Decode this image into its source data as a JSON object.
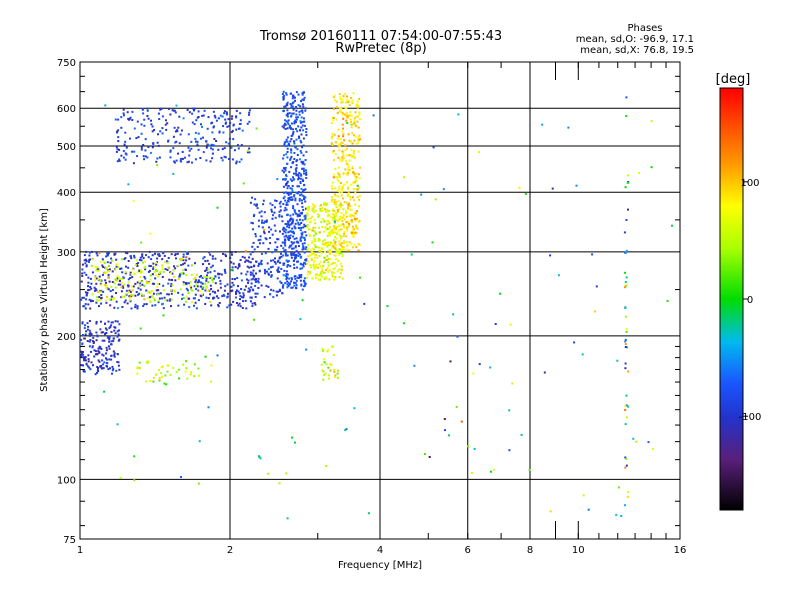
{
  "chart_data": {
    "type": "scatter",
    "title": "Tromsø 20160111 07:54:00-07:55:43",
    "subtitle": "RwPretec (8p)",
    "stats": {
      "heading": "Phases",
      "line1": "mean, sd,O: -96.9, 17.1",
      "line2": "mean, sd,X:  76.8, 19.5"
    },
    "xlabel": "Frequency [MHz]",
    "ylabel": "Stationary phase Virtual Height [km]",
    "x_scale": "log",
    "y_scale": "log",
    "xlim": [
      1,
      16
    ],
    "ylim": [
      75,
      750
    ],
    "x_ticks": [
      1,
      2,
      4,
      6,
      8,
      10,
      16
    ],
    "x_tick_labels": [
      "1",
      "2",
      "4",
      "6",
      "8",
      "10",
      "16"
    ],
    "y_ticks": [
      75,
      100,
      200,
      300,
      400,
      500,
      600,
      750
    ],
    "y_tick_labels": [
      "75",
      "100",
      "200",
      "300",
      "400",
      "500",
      "600",
      "750"
    ],
    "x_gridlines": [
      2,
      4,
      6,
      8
    ],
    "y_gridlines": [
      100,
      200,
      300,
      400,
      500,
      600
    ],
    "grid": true,
    "colorbar": {
      "label": "[deg]",
      "range": [
        -180,
        180
      ],
      "tick_values": [
        100,
        0,
        -100
      ],
      "tick_labels": [
        "100",
        "0",
        "-100"
      ]
    },
    "point_clusters": [
      {
        "name": "o-mode F trace",
        "x_range": [
          1.0,
          2.25
        ],
        "y_range": [
          228,
          300
        ],
        "phase": -100,
        "phase_sd": 25,
        "count": 520
      },
      {
        "name": "o-mode F trace rise",
        "x_range": [
          2.2,
          2.55
        ],
        "y_range": [
          240,
          390
        ],
        "phase": -90,
        "phase_sd": 20,
        "count": 170
      },
      {
        "name": "o-mode F vertical",
        "x_range": [
          2.55,
          2.85
        ],
        "y_range": [
          250,
          650
        ],
        "phase": -80,
        "phase_sd": 18,
        "count": 560
      },
      {
        "name": "x-mode F trace",
        "x_range": [
          2.85,
          3.4
        ],
        "y_range": [
          262,
          380
        ],
        "phase": 70,
        "phase_sd": 30,
        "count": 330
      },
      {
        "name": "x-mode F vertical",
        "x_range": [
          3.2,
          3.65
        ],
        "y_range": [
          300,
          650
        ],
        "phase": 90,
        "phase_sd": 25,
        "count": 360
      },
      {
        "name": "F2 upper trace",
        "x_range": [
          1.18,
          2.2
        ],
        "y_range": [
          460,
          600
        ],
        "phase": -90,
        "phase_sd": 25,
        "count": 260
      },
      {
        "name": "low-frequency echoes",
        "x_range": [
          1.0,
          1.2
        ],
        "y_range": [
          165,
          215
        ],
        "phase": -100,
        "phase_sd": 25,
        "count": 180
      },
      {
        "name": "low-frequency x-mode",
        "x_range": [
          1.05,
          1.85
        ],
        "y_range": [
          235,
          290
        ],
        "phase": 60,
        "phase_sd": 40,
        "count": 180
      },
      {
        "name": "sporadic cluster 1",
        "x_range": [
          1.3,
          1.85
        ],
        "y_range": [
          158,
          178
        ],
        "phase": 50,
        "phase_sd": 40,
        "count": 45
      },
      {
        "name": "sporadic cluster 2",
        "x_range": [
          3.05,
          3.3
        ],
        "y_range": [
          160,
          190
        ],
        "phase": 60,
        "phase_sd": 40,
        "count": 30
      },
      {
        "name": "12.5 MHz column",
        "x_range": [
          12.4,
          12.6
        ],
        "y_range": [
          85,
          640
        ],
        "phase": -20,
        "phase_sd": 110,
        "count": 45
      },
      {
        "name": "noise",
        "x_range": [
          1.0,
          15.5
        ],
        "y_range": [
          80,
          650
        ],
        "phase": 0,
        "phase_sd": 110,
        "count": 130
      }
    ]
  }
}
